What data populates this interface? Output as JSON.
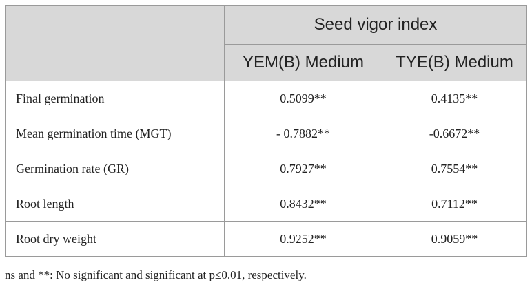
{
  "header": {
    "group_title": "Seed vigor index",
    "columns": [
      "YEM(B) Medium",
      "TYE(B) Medium"
    ]
  },
  "rows": [
    {
      "label": "Final germination",
      "values": [
        "0.5099**",
        "0.4135**"
      ]
    },
    {
      "label": "Mean germination time (MGT)",
      "values": [
        "- 0.7882**",
        "-0.6672**"
      ]
    },
    {
      "label": "Germination rate (GR)",
      "values": [
        "0.7927**",
        "0.7554**"
      ]
    },
    {
      "label": "Root length",
      "values": [
        "0.8432**",
        "0.7112**"
      ]
    },
    {
      "label": "Root dry weight",
      "values": [
        "0.9252**",
        "0.9059**"
      ]
    }
  ],
  "footnote": "ns and **: No significant and significant at p≤0.01, respectively."
}
